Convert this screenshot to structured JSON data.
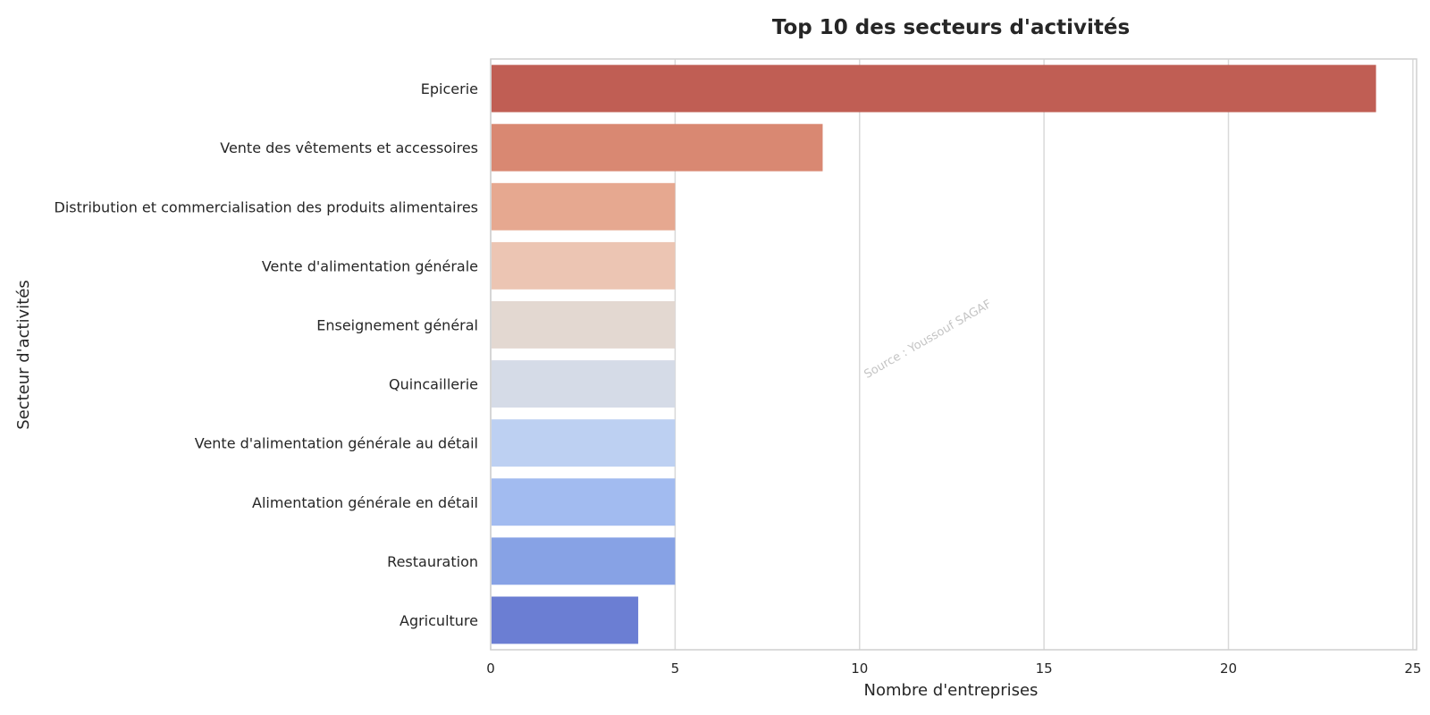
{
  "chart_data": {
    "type": "bar",
    "orientation": "horizontal",
    "title": "Top 10 des secteurs d'activités",
    "xlabel": "Nombre d'entreprises",
    "ylabel": "Secteur d'activités",
    "categories": [
      "Epicerie",
      "Vente des vêtements et accessoires",
      "Distribution et commercialisation des produits alimentaires",
      "Vente d'alimentation générale",
      "Enseignement général",
      "Quincaillerie",
      "Vente d'alimentation générale au détail",
      "Alimentation générale en détail",
      "Restauration",
      "Agriculture"
    ],
    "values": [
      24,
      9,
      5,
      5,
      5,
      5,
      5,
      5,
      5,
      4
    ],
    "colors": [
      "#c05e54",
      "#d98872",
      "#e6a890",
      "#ecc5b3",
      "#e3d8d1",
      "#d5dbe7",
      "#bdd0f2",
      "#a2bbf0",
      "#87a2e5",
      "#6b7ed3"
    ],
    "xlim": [
      0,
      25.1
    ],
    "xticks": [
      0,
      5,
      10,
      15,
      20,
      25
    ],
    "grid": "vertical",
    "annotation": "Source : Youssouf SAGAF"
  }
}
